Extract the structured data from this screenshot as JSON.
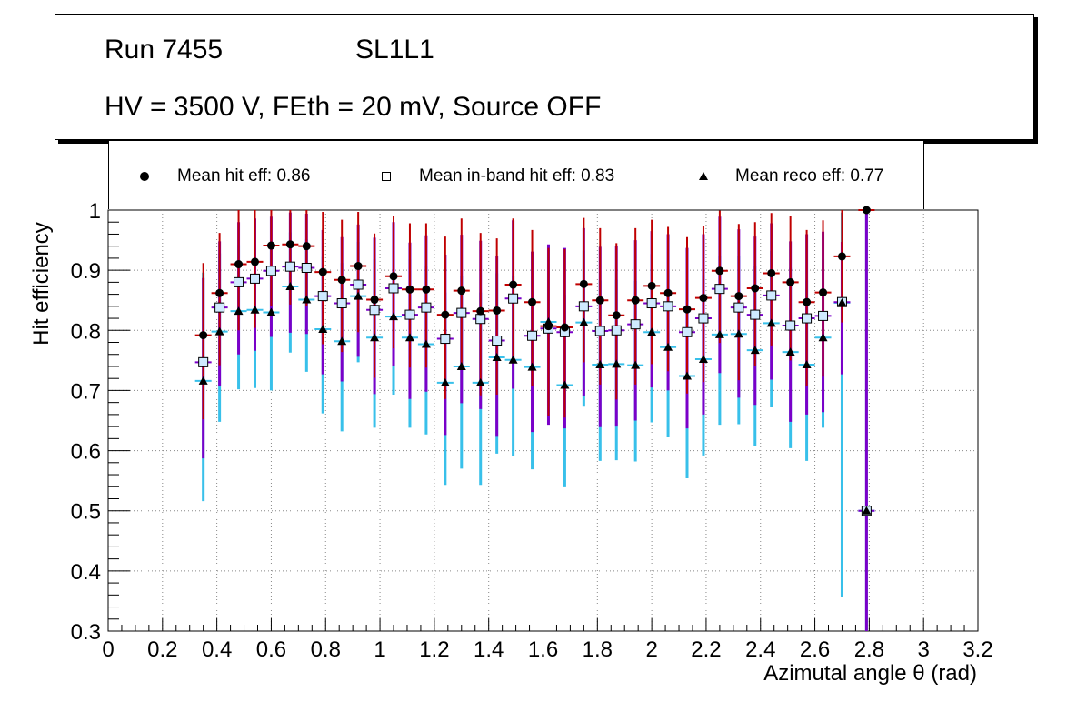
{
  "title_box": {
    "run": "Run 7455",
    "chamber": "SL1L1",
    "conditions": "HV = 3500 V, FEth = 20 mV, Source OFF"
  },
  "legend": {
    "hit": "Mean hit  eff: 0.86",
    "inband": "Mean in-band hit eff: 0.83",
    "reco": "Mean reco eff: 0.77"
  },
  "colors": {
    "hit_marker": "#000000",
    "hit_err_upper": "#c00000",
    "hit_err_mid": "#7a00c8",
    "inband_fill": "#cfeaff",
    "reco_err": "#38c0ea",
    "grid": "#888888"
  },
  "chart_data": {
    "type": "scatter",
    "title": "",
    "xlabel": "Azimutal angle θ (rad)",
    "ylabel": "Hit efficiency",
    "xlim": [
      0,
      3.2
    ],
    "ylim": [
      0.3,
      1.0
    ],
    "x_ticks": [
      "0",
      "0.2",
      "0.4",
      "0.6",
      "0.8",
      "1",
      "1.2",
      "1.4",
      "1.6",
      "1.8",
      "2",
      "2.2",
      "2.4",
      "2.6",
      "2.8",
      "3",
      "3.2"
    ],
    "y_ticks": [
      "0.3",
      "0.4",
      "0.5",
      "0.6",
      "0.7",
      "0.8",
      "0.9",
      "1"
    ],
    "grid": true,
    "x": [
      0.35,
      0.41,
      0.48,
      0.54,
      0.6,
      0.67,
      0.73,
      0.79,
      0.86,
      0.92,
      0.98,
      1.05,
      1.11,
      1.17,
      1.24,
      1.3,
      1.37,
      1.43,
      1.49,
      1.56,
      1.62,
      1.68,
      1.75,
      1.81,
      1.87,
      1.94,
      2.0,
      2.06,
      2.13,
      2.19,
      2.25,
      2.32,
      2.38,
      2.44,
      2.51,
      2.57,
      2.63,
      2.7,
      2.79
    ],
    "series": [
      {
        "name": "Mean hit  eff: 0.86",
        "marker": "circle",
        "values": [
          0.792,
          0.862,
          0.91,
          0.914,
          0.941,
          0.943,
          0.94,
          0.897,
          0.884,
          0.907,
          0.851,
          0.89,
          0.868,
          0.868,
          0.826,
          0.866,
          0.832,
          0.833,
          0.876,
          0.847,
          0.807,
          0.805,
          0.877,
          0.85,
          0.825,
          0.85,
          0.874,
          0.862,
          0.835,
          0.854,
          0.899,
          0.857,
          0.87,
          0.895,
          0.88,
          0.847,
          0.863,
          0.923,
          1.0
        ],
        "err_up": [
          0.12,
          0.1,
          0.09,
          0.09,
          0.07,
          0.07,
          0.08,
          0.1,
          0.1,
          0.09,
          0.11,
          0.1,
          0.11,
          0.11,
          0.13,
          0.12,
          0.13,
          0.12,
          0.11,
          0.12,
          0.13,
          0.13,
          0.11,
          0.12,
          0.12,
          0.12,
          0.11,
          0.11,
          0.12,
          0.12,
          0.1,
          0.12,
          0.11,
          0.1,
          0.11,
          0.12,
          0.12,
          0.08,
          0.0
        ],
        "err_dn": [
          0.14,
          0.12,
          0.11,
          0.11,
          0.1,
          0.1,
          0.1,
          0.12,
          0.12,
          0.11,
          0.13,
          0.12,
          0.13,
          0.13,
          0.14,
          0.13,
          0.14,
          0.14,
          0.13,
          0.14,
          0.15,
          0.15,
          0.13,
          0.14,
          0.14,
          0.14,
          0.13,
          0.13,
          0.14,
          0.14,
          0.12,
          0.14,
          0.13,
          0.12,
          0.13,
          0.14,
          0.14,
          0.11,
          0.0
        ]
      },
      {
        "name": "Mean in-band hit eff: 0.83",
        "marker": "open-square",
        "values": [
          0.747,
          0.838,
          0.88,
          0.886,
          0.899,
          0.906,
          0.904,
          0.857,
          0.845,
          0.876,
          0.834,
          0.87,
          0.826,
          0.838,
          0.786,
          0.829,
          0.819,
          0.783,
          0.853,
          0.791,
          0.803,
          0.797,
          0.84,
          0.799,
          0.8,
          0.81,
          0.845,
          0.84,
          0.797,
          0.82,
          0.869,
          0.838,
          0.826,
          0.858,
          0.808,
          0.82,
          0.824,
          0.847,
          0.5
        ],
        "err_up": [
          0.14,
          0.11,
          0.1,
          0.1,
          0.09,
          0.09,
          0.09,
          0.11,
          0.11,
          0.1,
          0.12,
          0.11,
          0.12,
          0.12,
          0.14,
          0.13,
          0.13,
          0.14,
          0.13,
          0.14,
          0.14,
          0.14,
          0.13,
          0.14,
          0.14,
          0.14,
          0.12,
          0.12,
          0.14,
          0.14,
          0.12,
          0.13,
          0.13,
          0.12,
          0.14,
          0.14,
          0.14,
          0.1,
          0.5
        ],
        "err_dn": [
          0.16,
          0.13,
          0.12,
          0.12,
          0.11,
          0.11,
          0.11,
          0.13,
          0.13,
          0.12,
          0.14,
          0.13,
          0.14,
          0.14,
          0.16,
          0.15,
          0.15,
          0.16,
          0.15,
          0.16,
          0.16,
          0.16,
          0.15,
          0.16,
          0.16,
          0.16,
          0.14,
          0.14,
          0.16,
          0.16,
          0.14,
          0.15,
          0.15,
          0.14,
          0.16,
          0.16,
          0.16,
          0.12,
          0.5
        ]
      },
      {
        "name": "Mean reco eff: 0.77",
        "marker": "triangle",
        "values": [
          0.716,
          0.798,
          0.832,
          0.834,
          0.83,
          0.873,
          0.851,
          0.802,
          0.782,
          0.857,
          0.788,
          0.823,
          0.788,
          0.777,
          0.713,
          0.74,
          0.713,
          0.755,
          0.751,
          0.739,
          0.814,
          0.709,
          0.813,
          0.743,
          0.744,
          0.742,
          0.797,
          0.772,
          0.724,
          0.752,
          0.793,
          0.794,
          0.767,
          0.812,
          0.764,
          0.743,
          0.788,
          0.846,
          0.5
        ],
        "err_up": [
          0.18,
          0.13,
          0.11,
          0.11,
          0.11,
          0.09,
          0.1,
          0.12,
          0.13,
          0.09,
          0.13,
          0.11,
          0.13,
          0.13,
          0.15,
          0.15,
          0.15,
          0.14,
          0.14,
          0.15,
          0.12,
          0.15,
          0.12,
          0.14,
          0.14,
          0.14,
          0.13,
          0.13,
          0.15,
          0.14,
          0.13,
          0.13,
          0.14,
          0.12,
          0.14,
          0.14,
          0.13,
          0.15,
          0.5
        ],
        "err_dn": [
          0.2,
          0.15,
          0.13,
          0.13,
          0.13,
          0.11,
          0.12,
          0.14,
          0.15,
          0.11,
          0.15,
          0.13,
          0.15,
          0.15,
          0.17,
          0.17,
          0.17,
          0.16,
          0.16,
          0.17,
          0.14,
          0.17,
          0.14,
          0.16,
          0.16,
          0.16,
          0.15,
          0.15,
          0.17,
          0.16,
          0.15,
          0.15,
          0.16,
          0.14,
          0.16,
          0.16,
          0.15,
          0.49,
          0.5
        ]
      }
    ]
  }
}
